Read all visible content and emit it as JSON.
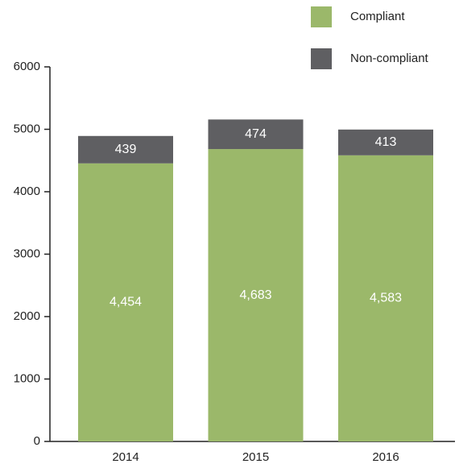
{
  "chart_data": {
    "type": "stacked_bar",
    "categories": [
      "2014",
      "2015",
      "2016"
    ],
    "series": [
      {
        "name": "Compliant",
        "color": "#9bb86a",
        "values": [
          4454,
          4683,
          4583
        ],
        "value_labels": [
          "4,454",
          "4,683",
          "4,583"
        ]
      },
      {
        "name": "Non-compliant",
        "color": "#5f5f62",
        "values": [
          439,
          474,
          413
        ]
      }
    ],
    "ylim": [
      0,
      6000
    ],
    "yticks": [
      0,
      1000,
      2000,
      3000,
      4000,
      5000,
      6000
    ],
    "grid": false
  }
}
